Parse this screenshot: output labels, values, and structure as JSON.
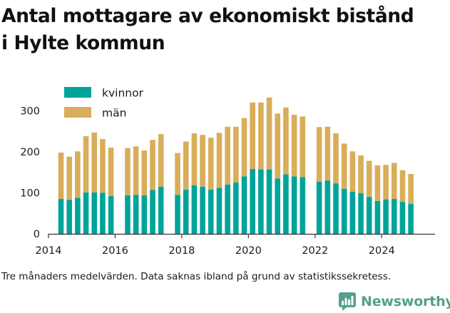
{
  "title_lines": [
    "Antal mottagare av ekonomiskt bistånd",
    "i Hylte kommun"
  ],
  "footnote": "Tre månaders medelvärden. Data saknas ibland på grund av statistikssekretess.",
  "brand": "Newsworthy",
  "colors": {
    "kvinnor": "#00a49a",
    "man": "#d9ad5a",
    "axis": "#333333",
    "text": "#1a1a1a",
    "brand": "#53a08e"
  },
  "chart_data": {
    "type": "bar",
    "stacked": true,
    "title": "Antal mottagare av ekonomiskt bistånd i Hylte kommun",
    "xlabel": "",
    "ylabel": "",
    "ylim": [
      0,
      330
    ],
    "xlim": [
      2014.0,
      2025.6
    ],
    "yticks": [
      0,
      100,
      200,
      300
    ],
    "ytick_labels": [
      "0",
      "100",
      "200",
      "300"
    ],
    "xticks": [
      2014,
      2016,
      2018,
      2020,
      2022,
      2024
    ],
    "xtick_labels": [
      "2014",
      "2016",
      "2018",
      "2020",
      "2022",
      "2024"
    ],
    "legend": {
      "position": "top-left",
      "entries": [
        "kvinnor",
        "män"
      ]
    },
    "x": [
      2014.375,
      2014.625,
      2014.875,
      2015.125,
      2015.375,
      2015.625,
      2015.875,
      2016.375,
      2016.625,
      2016.875,
      2017.125,
      2017.375,
      2017.875,
      2018.125,
      2018.375,
      2018.625,
      2018.875,
      2019.125,
      2019.375,
      2019.625,
      2019.875,
      2020.125,
      2020.375,
      2020.625,
      2020.875,
      2021.125,
      2021.375,
      2021.625,
      2022.125,
      2022.375,
      2022.625,
      2022.875,
      2023.125,
      2023.375,
      2023.625,
      2023.875,
      2024.125,
      2024.375,
      2024.625,
      2024.875
    ],
    "series": [
      {
        "name": "kvinnor",
        "values": [
          85,
          83,
          88,
          101,
          101,
          100,
          92,
          94,
          95,
          94,
          107,
          115,
          95,
          108,
          118,
          115,
          108,
          112,
          120,
          125,
          140,
          158,
          157,
          157,
          135,
          145,
          140,
          138,
          127,
          130,
          123,
          110,
          103,
          99,
          90,
          80,
          84,
          85,
          78,
          73
        ]
      },
      {
        "name": "män",
        "values": [
          113,
          105,
          113,
          137,
          146,
          131,
          118,
          115,
          118,
          109,
          122,
          128,
          102,
          117,
          127,
          126,
          126,
          134,
          141,
          136,
          142,
          162,
          163,
          175,
          158,
          163,
          150,
          148,
          133,
          131,
          122,
          110,
          98,
          92,
          88,
          87,
          84,
          88,
          77,
          73
        ]
      }
    ]
  }
}
